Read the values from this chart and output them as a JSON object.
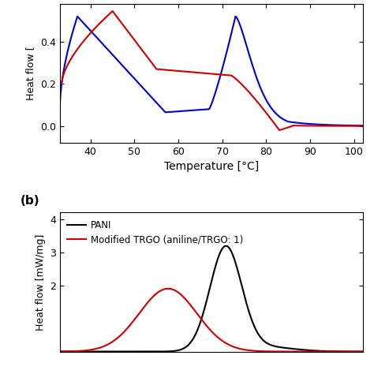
{
  "panel_a": {
    "ylabel": "Heat flow [",
    "xlabel": "Temperature [°C]",
    "xlim": [
      33,
      102
    ],
    "ylim": [
      -0.08,
      0.58
    ],
    "yticks": [
      0.0,
      0.2,
      0.4
    ],
    "xticks": [
      40,
      50,
      60,
      70,
      80,
      90,
      100
    ],
    "blue_color": "#0000cc",
    "red_color": "#cc0000",
    "linewidth": 1.5
  },
  "panel_b": {
    "ylabel": "Heat flow [mW/mg]",
    "xlim": [
      100,
      310
    ],
    "ylim": [
      0,
      4.2
    ],
    "yticks": [
      2,
      3,
      4
    ],
    "label_b": "(b)",
    "black_label": "PANI",
    "red_label": "Modified TRGO (aniline/TRGO: 1)",
    "black_color": "#000000",
    "red_color": "#cc0000",
    "linewidth": 1.5
  }
}
